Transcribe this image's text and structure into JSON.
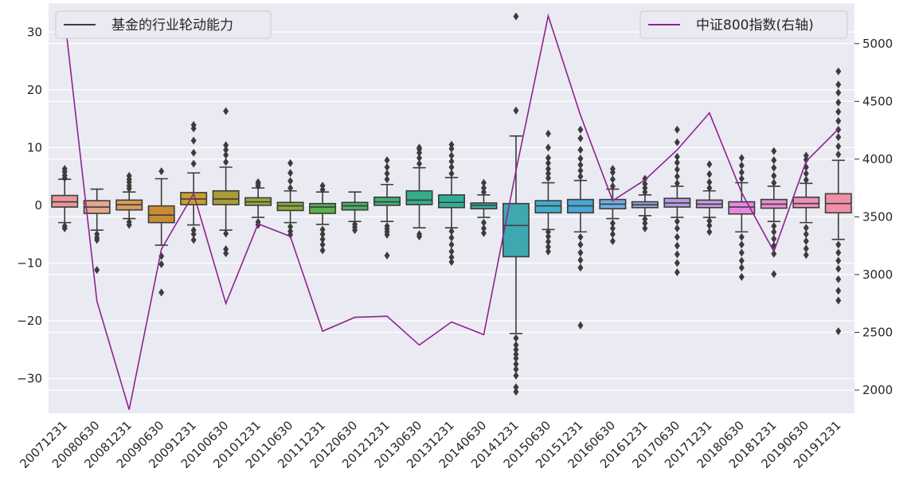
{
  "chart_data": {
    "type": "box",
    "title": "",
    "xlabel": "",
    "ylabel": "",
    "categories": [
      "20071231",
      "20080630",
      "20081231",
      "20090630",
      "20091231",
      "20100630",
      "20101231",
      "20110630",
      "20111231",
      "20120630",
      "20121231",
      "20130630",
      "20131231",
      "20140630",
      "20141231",
      "20150630",
      "20151231",
      "20160630",
      "20161231",
      "20170630",
      "20171231",
      "20180630",
      "20181231",
      "20190630",
      "20191231"
    ],
    "ylim_left": [
      -36,
      35
    ],
    "left_ticks": [
      -30,
      -20,
      -10,
      0,
      10,
      20,
      30
    ],
    "ylim_right": [
      1800,
      5350
    ],
    "right_ticks": [
      2000,
      2500,
      3000,
      3500,
      4000,
      4500,
      5000
    ],
    "boxes": [
      {
        "color": "#e8979a",
        "q1": -0.3,
        "med": 0.6,
        "q3": 1.7,
        "wlo": -3.0,
        "whi": 4.5,
        "outliers": [
          -4.0,
          -3.6,
          4.7,
          5.2,
          5.8,
          6.3
        ]
      },
      {
        "color": "#e2a78e",
        "q1": -1.4,
        "med": -0.3,
        "q3": 0.8,
        "wlo": -4.3,
        "whi": 2.8,
        "outliers": [
          -5.0,
          -5.6,
          -6.0,
          -11.2
        ]
      },
      {
        "color": "#dc9b57",
        "q1": -0.8,
        "med": 0.1,
        "q3": 0.9,
        "wlo": -2.3,
        "whi": 2.3,
        "outliers": [
          -3.4,
          -2.9,
          2.9,
          3.4,
          4.0,
          4.5,
          5.1
        ]
      },
      {
        "color": "#c98c34",
        "q1": -3.0,
        "med": -1.7,
        "q3": -0.1,
        "wlo": -6.9,
        "whi": 4.6,
        "outliers": [
          -8.8,
          -10.2,
          -15.1,
          5.9
        ]
      },
      {
        "color": "#c8a030",
        "q1": 0.1,
        "med": 1.1,
        "q3": 2.2,
        "wlo": -3.4,
        "whi": 5.6,
        "outliers": [
          -4.3,
          -5.0,
          -6.0,
          7.2,
          9.1,
          11.2,
          13.3,
          13.9
        ]
      },
      {
        "color": "#a99c36",
        "q1": 0.1,
        "med": 1.1,
        "q3": 2.5,
        "wlo": -4.3,
        "whi": 6.6,
        "outliers": [
          -4.9,
          -7.6,
          -8.3,
          7.5,
          8.7,
          9.6,
          10.4,
          16.3
        ]
      },
      {
        "color": "#9ba83a",
        "q1": 0.0,
        "med": 0.6,
        "q3": 1.3,
        "wlo": -2.1,
        "whi": 3.0,
        "outliers": [
          -2.9,
          -3.4,
          3.3,
          3.7,
          4.0
        ]
      },
      {
        "color": "#8aab38",
        "q1": -0.9,
        "med": -0.1,
        "q3": 0.5,
        "wlo": -3.0,
        "whi": 2.5,
        "outliers": [
          -3.7,
          -4.5,
          -5.1,
          3.0,
          4.2,
          5.6,
          7.3
        ]
      },
      {
        "color": "#5bb050",
        "q1": -1.4,
        "med": -0.3,
        "q3": 0.3,
        "wlo": -3.3,
        "whi": 2.3,
        "outliers": [
          -4.2,
          -5.0,
          -5.9,
          -6.8,
          -7.8,
          2.7,
          3.4
        ]
      },
      {
        "color": "#4fb263",
        "q1": -0.8,
        "med": -0.1,
        "q3": 0.5,
        "wlo": -2.8,
        "whi": 2.3,
        "outliers": [
          -3.3,
          -3.8,
          -4.3
        ]
      },
      {
        "color": "#3fb17a",
        "q1": 0.0,
        "med": 0.6,
        "q3": 1.4,
        "wlo": -2.8,
        "whi": 3.6,
        "outliers": [
          -3.6,
          -4.1,
          -4.6,
          -5.1,
          -8.7,
          4.5,
          5.5,
          6.6,
          7.8
        ]
      },
      {
        "color": "#35ae8e",
        "q1": 0.1,
        "med": 0.9,
        "q3": 2.5,
        "wlo": -3.9,
        "whi": 6.5,
        "outliers": [
          -5.0,
          -5.4,
          7.2,
          8.2,
          9.1,
          9.7,
          10.0
        ]
      },
      {
        "color": "#33ad99",
        "q1": -0.4,
        "med": 0.5,
        "q3": 1.8,
        "wlo": -3.9,
        "whi": 4.8,
        "outliers": [
          -4.5,
          -5.6,
          -6.8,
          -8.0,
          -9.0,
          -9.8,
          5.5,
          6.6,
          7.6,
          8.6,
          9.8,
          10.5
        ]
      },
      {
        "color": "#3baaa4",
        "q1": -0.6,
        "med": 0.0,
        "q3": 0.4,
        "wlo": -2.1,
        "whi": 1.8,
        "outliers": [
          -3.0,
          -4.0,
          -4.8,
          2.3,
          3.0,
          3.9
        ]
      },
      {
        "color": "#3ea8b1",
        "q1": -8.9,
        "med": -3.5,
        "q3": 0.3,
        "wlo": -22.2,
        "whi": 12.0,
        "outliers": [
          -23.0,
          -24.2,
          -25.0,
          -25.8,
          -26.5,
          -27.5,
          -28.4,
          -29.5,
          -31.5,
          -32.3,
          16.4,
          32.7
        ]
      },
      {
        "color": "#43aecd",
        "q1": -1.3,
        "med": -0.1,
        "q3": 0.8,
        "wlo": -4.2,
        "whi": 3.9,
        "outliers": [
          -4.6,
          -5.4,
          -6.3,
          -7.2,
          -8.0,
          4.7,
          5.5,
          6.3,
          7.3,
          8.2,
          10.0,
          12.4
        ]
      },
      {
        "color": "#4aa7d6",
        "q1": -1.3,
        "med": -0.1,
        "q3": 1.0,
        "wlo": -4.6,
        "whi": 4.3,
        "outliers": [
          -5.5,
          -6.8,
          -8.2,
          -9.5,
          -10.8,
          -20.8,
          5.0,
          6.0,
          7.0,
          8.1,
          9.6,
          11.6,
          13.1
        ]
      },
      {
        "color": "#6faee2",
        "q1": -0.6,
        "med": 0.2,
        "q3": 1.0,
        "wlo": -2.3,
        "whi": 2.8,
        "outliers": [
          -3.1,
          -4.0,
          -5.0,
          -6.2,
          3.3,
          4.5,
          5.7,
          6.3
        ]
      },
      {
        "color": "#9aa6e0",
        "q1": -0.4,
        "med": 0.1,
        "q3": 0.6,
        "wlo": -1.8,
        "whi": 1.8,
        "outliers": [
          -2.4,
          -3.1,
          -4.0,
          2.3,
          3.0,
          3.7,
          4.6
        ]
      },
      {
        "color": "#b59ae0",
        "q1": -0.3,
        "med": 0.4,
        "q3": 1.2,
        "wlo": -2.1,
        "whi": 3.3,
        "outliers": [
          -2.8,
          -4.0,
          -5.5,
          -7.0,
          -8.5,
          -10.0,
          -11.6,
          3.8,
          5.0,
          6.2,
          7.4,
          8.4,
          10.9,
          13.1
        ]
      },
      {
        "color": "#c89ae2",
        "q1": -0.4,
        "med": 0.2,
        "q3": 0.9,
        "wlo": -2.1,
        "whi": 2.5,
        "outliers": [
          -2.7,
          -3.5,
          -4.6,
          3.0,
          4.0,
          5.4,
          7.1
        ]
      },
      {
        "color": "#e58ae0",
        "q1": -1.5,
        "med": -0.3,
        "q3": 0.6,
        "wlo": -4.6,
        "whi": 3.9,
        "outliers": [
          -5.5,
          -6.8,
          -8.2,
          -9.6,
          -10.8,
          -12.4,
          4.6,
          5.7,
          6.9,
          8.2
        ]
      },
      {
        "color": "#ea8ecf",
        "q1": -0.5,
        "med": 0.2,
        "q3": 1.0,
        "wlo": -2.8,
        "whi": 3.3,
        "outliers": [
          -3.6,
          -4.6,
          -5.8,
          -7.0,
          -8.4,
          -11.9,
          3.9,
          5.1,
          6.5,
          7.8,
          9.4
        ]
      },
      {
        "color": "#ed8fba",
        "q1": -0.4,
        "med": 0.3,
        "q3": 1.4,
        "wlo": -3.0,
        "whi": 3.8,
        "outliers": [
          -3.9,
          -5.0,
          -6.2,
          -7.5,
          -8.6,
          4.4,
          5.5,
          6.6,
          7.9,
          8.6
        ]
      },
      {
        "color": "#ef90a6",
        "q1": -1.3,
        "med": 0.3,
        "q3": 2.0,
        "wlo": -5.9,
        "whi": 7.8,
        "outliers": [
          -6.8,
          -8.2,
          -9.6,
          -11.0,
          -12.8,
          -14.8,
          -16.5,
          -21.8,
          8.8,
          10.2,
          11.8,
          13.1,
          14.6,
          16.2,
          17.8,
          19.5,
          20.9,
          23.2
        ]
      }
    ],
    "index_series": {
      "name": "中证800指数(右轴)",
      "color": "#8f2290",
      "values": [
        5220,
        2770,
        1830,
        3220,
        3700,
        2750,
        3440,
        3330,
        2510,
        2630,
        2640,
        2390,
        2590,
        2480,
        3900,
        5240,
        4380,
        3640,
        3820,
        4080,
        4400,
        3710,
        3200,
        3980,
        4260
      ]
    },
    "legend_left": {
      "label": "基金的行业轮动能力",
      "placement": "top-left"
    },
    "legend_right": {
      "label": "中证800指数(右轴)",
      "placement": "top-right"
    },
    "grid": true
  }
}
